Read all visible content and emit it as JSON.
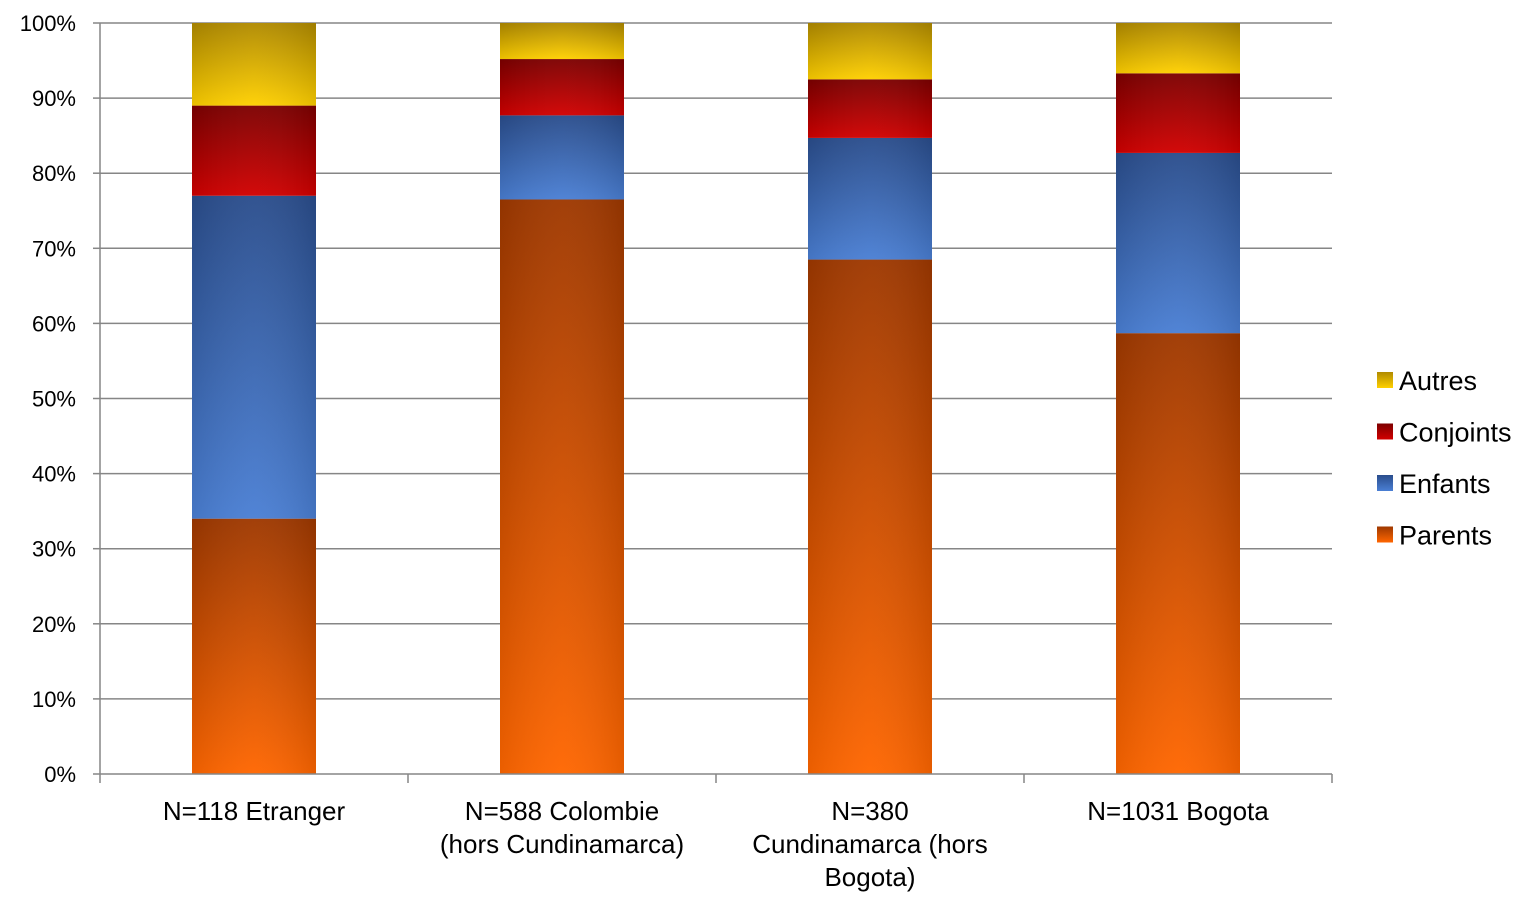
{
  "chart_data": {
    "type": "bar",
    "stacked": true,
    "percent": true,
    "categories": [
      [
        "N=118 Etranger"
      ],
      [
        "N=588 Colombie",
        "(hors Cundinamarca)"
      ],
      [
        "N=380",
        "Cundinamarca (hors",
        "Bogota)"
      ],
      [
        "N=1031 Bogota"
      ]
    ],
    "series": [
      {
        "name": "Parents",
        "values": [
          34,
          76.5,
          68.5,
          58.7
        ]
      },
      {
        "name": "Enfants",
        "values": [
          43,
          11.2,
          16.2,
          24
        ]
      },
      {
        "name": "Conjoints",
        "values": [
          12,
          7.5,
          7.8,
          10.6
        ]
      },
      {
        "name": "Autres",
        "values": [
          11,
          4.8,
          7.5,
          6.7
        ]
      }
    ],
    "colors": {
      "Parents": {
        "light": "#ff6600",
        "dark": "#9e3800"
      },
      "Enfants": {
        "light": "#4a7fd4",
        "dark": "#2a4d8c"
      },
      "Conjoints": {
        "light": "#d20000",
        "dark": "#7c0000"
      },
      "Autres": {
        "light": "#ffd000",
        "dark": "#b08a00"
      }
    },
    "y_ticks": [
      "0%",
      "10%",
      "20%",
      "30%",
      "40%",
      "50%",
      "60%",
      "70%",
      "80%",
      "90%",
      "100%"
    ],
    "ylim": [
      0,
      100
    ],
    "grid": true,
    "legend_position": "right",
    "legend_order": [
      "Autres",
      "Conjoints",
      "Enfants",
      "Parents"
    ],
    "title": "",
    "xlabel": "",
    "ylabel": ""
  }
}
